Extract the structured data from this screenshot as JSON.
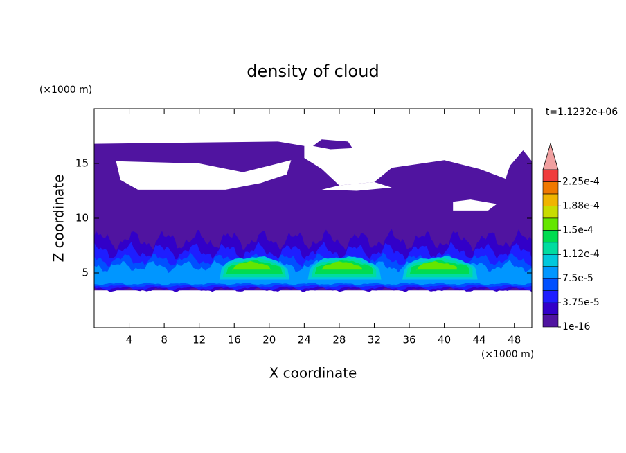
{
  "chart_data": {
    "type": "contour",
    "title": "density of cloud",
    "xlabel": "X coordinate",
    "ylabel": "Z coordinate",
    "x_unit": "(×1000 m)",
    "y_unit": "(×1000 m)",
    "annotation": "t=1.1232e+06",
    "xlim": [
      0,
      50
    ],
    "xticks": [
      4,
      8,
      12,
      16,
      20,
      24,
      28,
      32,
      36,
      40,
      44,
      48
    ],
    "ylim": [
      0,
      20
    ],
    "yticks": [
      5,
      10,
      15
    ],
    "levels": [
      1e-16,
      1.875e-05,
      3.75e-05,
      5.625e-05,
      7.5e-05,
      9.375e-05,
      0.0001125,
      0.00013125,
      0.00015,
      0.00016875,
      0.0001875,
      0.00020625,
      0.000225,
      0.00024375
    ],
    "colors": [
      "#5014a0",
      "#3200c8",
      "#1e1eff",
      "#0050ff",
      "#0096ff",
      "#00c8dc",
      "#00dca0",
      "#00dc50",
      "#64e600",
      "#c8dc00",
      "#f0b400",
      "#f07800",
      "#f03c3c"
    ],
    "overflow_color": "#f0a0a0",
    "cbar_ticks": [
      {
        "value": 1e-16,
        "label": "1e-16"
      },
      {
        "value": 3.75e-05,
        "label": "3.75e-5"
      },
      {
        "value": 7.5e-05,
        "label": "7.5e-5"
      },
      {
        "value": 0.0001125,
        "label": "1.12e-4"
      },
      {
        "value": 0.00015,
        "label": "1.5e-4"
      },
      {
        "value": 0.0001875,
        "label": "1.88e-4"
      },
      {
        "value": 0.000225,
        "label": "2.25e-4"
      }
    ]
  }
}
